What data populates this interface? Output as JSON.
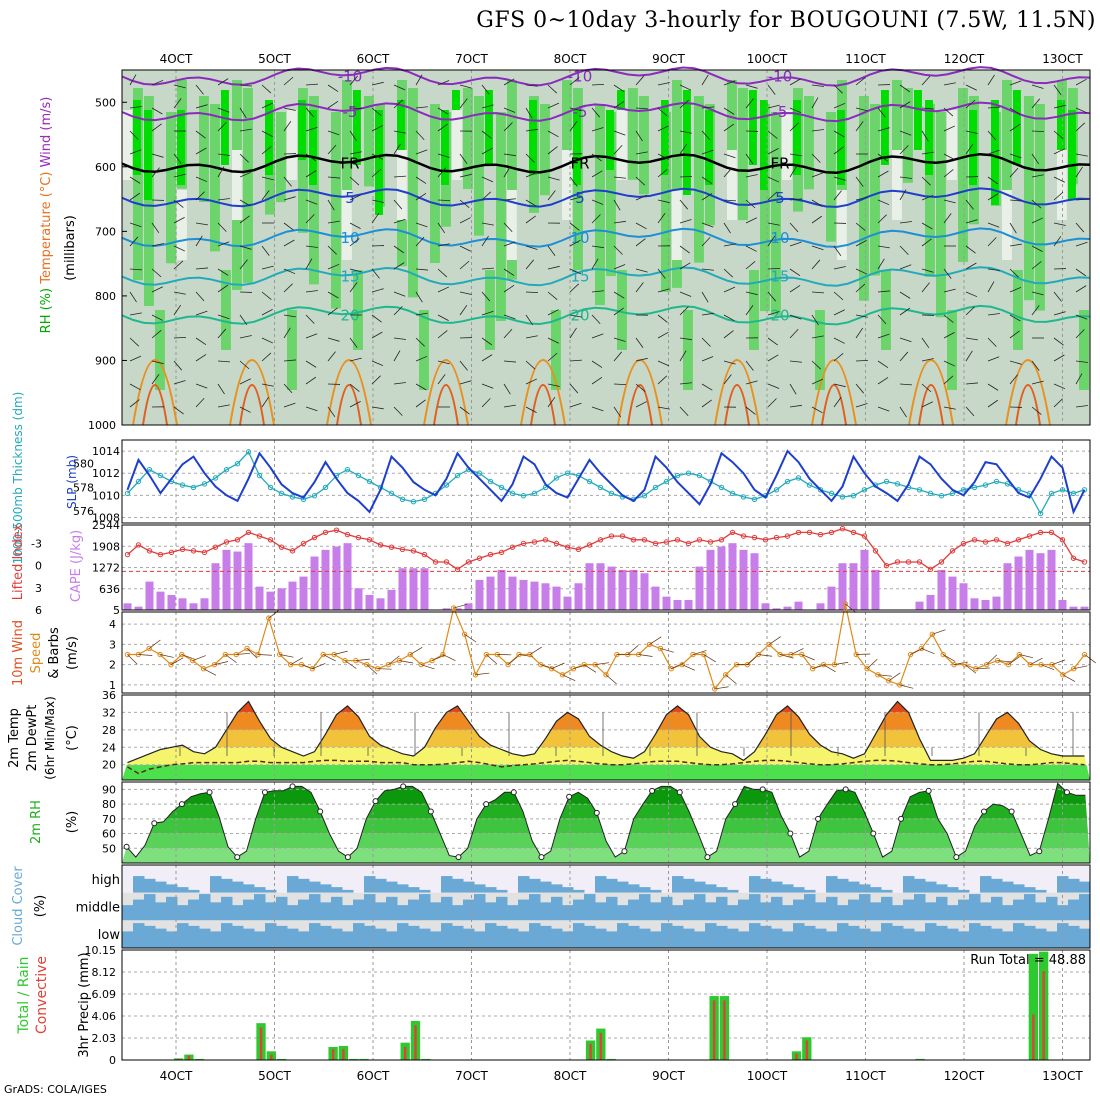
{
  "title": "GFS 0~10day 3-hourly for BOUGOUNI (7.5W, 11.5N)",
  "footer": "GrADS: COLA/IGES",
  "dates": [
    "4OCT",
    "5OCT",
    "6OCT",
    "7OCT",
    "8OCT",
    "9OCT",
    "10OCT",
    "11OCT",
    "12OCT",
    "13OCT"
  ],
  "colors": {
    "rh_dark": "#00dd00",
    "rh_mid": "#6bd46b",
    "rh_light": "#c8d8c8",
    "rh_pale": "#e8f0e8",
    "slp": "#1d3fcc",
    "thick": "#22aabb",
    "li": "#e03c3c",
    "cape": "#c77ee8",
    "wind": "#e08a1a",
    "rh2m": "#1dae1d",
    "cloud": "#6aa9d6",
    "cloud_pale": "#f2eef8",
    "rain_total": "#2ec92e",
    "rain_conv": "#e0413a"
  },
  "chart_data": [
    {
      "name": "upper-air",
      "type": "heatmap",
      "ylabel_parts": [
        "RH (%)",
        "Temperature (°C)",
        "Wind (m/s)"
      ],
      "axis_note": "(millibars)",
      "yticks": [
        500,
        600,
        700,
        800,
        900,
        1000
      ],
      "temperature_contours": [
        {
          "label": "-10",
          "level_mb": 460
        },
        {
          "label": "-5",
          "level_mb": 515
        },
        {
          "label": "FR",
          "level_mb": 595
        },
        {
          "label": "5",
          "level_mb": 648
        },
        {
          "label": "10",
          "level_mb": 710
        },
        {
          "label": "15",
          "level_mb": 770
        },
        {
          "label": "20",
          "level_mb": 830
        }
      ]
    },
    {
      "name": "slp-thickness",
      "type": "line",
      "ylabel_left": "1000-500mb Thickness (dm)",
      "ylabel_right": "SLP (mb)",
      "left_ticks": [
        576,
        578,
        580
      ],
      "right_ticks": [
        1008,
        1010,
        1012,
        1014
      ],
      "series": [
        {
          "name": "SLP (mb)",
          "values": [
            1010.5,
            1013.2,
            1011.8,
            1010.2,
            1011.5,
            1012.8,
            1013.5,
            1012.0,
            1010.8,
            1010.0,
            1009.5,
            1011.5,
            1013.8,
            1012.5,
            1011.0,
            1010.2,
            1009.8,
            1011.2,
            1013.0,
            1011.5,
            1010.2,
            1009.5,
            1008.5,
            1010.5,
            1013.5,
            1012.5,
            1011.2,
            1010.5,
            1010.0,
            1011.5,
            1013.8,
            1012.5,
            1011.5,
            1010.5,
            1009.5,
            1011.0,
            1013.5,
            1012.8,
            1011.0,
            1010.2,
            1009.8,
            1011.5,
            1013.2,
            1012.0,
            1011.0,
            1010.0,
            1009.5,
            1010.5,
            1013.5,
            1012.5,
            1011.2,
            1010.2,
            1009.2,
            1011.0,
            1013.8,
            1013.0,
            1012.0,
            1010.5,
            1009.8,
            1011.8,
            1014.0,
            1013.0,
            1011.5,
            1010.5,
            1009.5,
            1010.8,
            1013.5,
            1012.0,
            1010.8,
            1010.2,
            1009.5,
            1011.0,
            1013.5,
            1012.8,
            1011.5,
            1010.5,
            1010.0,
            1011.2,
            1013.0,
            1012.8,
            1011.5,
            1010.2,
            1009.8,
            1011.5,
            1013.5,
            1012.5,
            1008.5,
            1010.5
          ]
        },
        {
          "name": "Thickness (dm)",
          "values": [
            577.5,
            578.5,
            579.5,
            579.0,
            578.5,
            578.2,
            578.0,
            578.3,
            578.8,
            579.5,
            580.0,
            581.0,
            579.0,
            578.0,
            577.5,
            577.2,
            577.0,
            577.3,
            578.0,
            579.0,
            579.5,
            579.0,
            578.5,
            578.0,
            577.5,
            577.0,
            576.8,
            577.0,
            577.5,
            578.2,
            579.0,
            579.5,
            579.2,
            578.5,
            578.0,
            577.5,
            577.3,
            577.5,
            578.0,
            578.8,
            579.2,
            579.0,
            578.5,
            578.0,
            577.5,
            577.2,
            577.0,
            577.3,
            578.0,
            578.5,
            579.0,
            579.2,
            579.0,
            578.5,
            578.0,
            577.5,
            577.2,
            577.0,
            577.3,
            577.8,
            578.5,
            578.8,
            578.2,
            577.8,
            577.5,
            577.2,
            577.3,
            577.8,
            578.2,
            578.5,
            578.3,
            578.0,
            577.8,
            577.5,
            577.3,
            577.5,
            577.8,
            578.0,
            578.2,
            578.5,
            578.3,
            577.8,
            577.5,
            575.8,
            577.5,
            577.8,
            577.5,
            577.8
          ]
        }
      ]
    },
    {
      "name": "li-cape",
      "type": "bar",
      "ylabel_left": "Lifted Index",
      "ylabel_right": "CAPE (J/kg)",
      "left_ticks": [
        -3,
        0,
        3,
        6
      ],
      "right_ticks": [
        636,
        1272,
        1908,
        2544
      ],
      "series": [
        {
          "name": "Lifted Index",
          "values": [
            -1.5,
            -2.8,
            -2.0,
            -1.5,
            -1.8,
            -2.2,
            -2.0,
            -1.8,
            -2.5,
            -3.2,
            -3.5,
            -4.5,
            -4.0,
            -3.5,
            -2.5,
            -2.0,
            -3.0,
            -3.8,
            -4.5,
            -4.8,
            -4.2,
            -3.8,
            -3.5,
            -2.8,
            -2.5,
            -2.2,
            -2.0,
            -1.5,
            -0.5,
            -0.5,
            0.5,
            -0.5,
            -1.0,
            -1.5,
            -1.8,
            -2.5,
            -3.0,
            -3.2,
            -3.5,
            -3.0,
            -2.5,
            -2.2,
            -2.8,
            -3.5,
            -4.0,
            -4.0,
            -3.5,
            -3.5,
            -3.0,
            -3.2,
            -3.5,
            -3.0,
            -3.5,
            -3.2,
            -3.5,
            -4.5,
            -4.0,
            -3.8,
            -3.5,
            -3.8,
            -4.0,
            -4.5,
            -4.5,
            -4.2,
            -4.5,
            -5.0,
            -4.5,
            -4.0,
            -2.0,
            0.0,
            -0.5,
            -0.5,
            -0.5,
            0.5,
            -0.5,
            -2.0,
            -3.0,
            -3.5,
            -3.2,
            -3.5,
            -3.0,
            -3.5,
            -4.0,
            -4.5,
            -4.5,
            -3.5,
            -1.0,
            -0.5
          ]
        },
        {
          "name": "CAPE (J/kg)",
          "values": [
            200,
            100,
            850,
            550,
            450,
            350,
            200,
            350,
            1400,
            1800,
            1750,
            2000,
            700,
            550,
            650,
            850,
            1000,
            1600,
            1800,
            1900,
            2000,
            650,
            450,
            350,
            600,
            1250,
            1250,
            1250,
            0,
            50,
            50,
            200,
            900,
            1000,
            1200,
            1000,
            900,
            850,
            800,
            700,
            400,
            800,
            1400,
            1400,
            1300,
            1200,
            1200,
            1100,
            700,
            400,
            300,
            300,
            1300,
            1800,
            1900,
            2000,
            1800,
            1700,
            200,
            50,
            100,
            250,
            0,
            200,
            700,
            1400,
            1400,
            1800,
            1200,
            0,
            0,
            0,
            250,
            450,
            1200,
            1000,
            800,
            350,
            300,
            400,
            1400,
            1600,
            1800,
            1700,
            1800,
            300,
            100,
            100
          ]
        }
      ]
    },
    {
      "name": "wind10m",
      "type": "line",
      "ylabel": "10m Wind Speed & Barbs (m/s)",
      "ylim": [
        1,
        4
      ],
      "yticks": [
        1,
        2,
        3,
        4
      ],
      "values": [
        2.5,
        2.5,
        2.8,
        2.5,
        2.0,
        2.5,
        2.2,
        1.8,
        2.0,
        2.5,
        2.5,
        2.8,
        2.5,
        4.3,
        2.5,
        2.0,
        2.0,
        1.8,
        2.5,
        2.5,
        2.2,
        2.2,
        2.0,
        1.8,
        2.0,
        2.2,
        2.5,
        2.0,
        2.2,
        2.5,
        4.8,
        3.5,
        1.5,
        2.5,
        2.5,
        2.0,
        2.5,
        2.5,
        2.0,
        1.8,
        1.5,
        1.8,
        2.0,
        2.0,
        1.5,
        2.5,
        2.5,
        2.5,
        3.0,
        2.8,
        1.8,
        2.0,
        2.5,
        2.5,
        0.8,
        1.5,
        2.0,
        2.0,
        2.5,
        3.0,
        2.5,
        2.5,
        2.5,
        1.8,
        2.0,
        2.0,
        5.0,
        2.5,
        1.8,
        1.5,
        1.2,
        1.0,
        2.5,
        2.8,
        3.5,
        2.5,
        2.0,
        2.0,
        1.8,
        2.0,
        2.2,
        2.0,
        2.5,
        2.0,
        2.0,
        2.0,
        1.5,
        1.8,
        2.5
      ]
    },
    {
      "name": "temperature2m",
      "type": "area",
      "ylabel": "2m Temp 2m DewPt (6hr Min/Max) (°C)",
      "ylim": [
        16,
        36
      ],
      "yticks": [
        20,
        24,
        28,
        32,
        36
      ],
      "series": [
        {
          "name": "2m Temp",
          "values": [
            20.5,
            21.5,
            22.5,
            23.5,
            24.0,
            24.5,
            23.0,
            22.5,
            24.0,
            28.0,
            32.0,
            34.5,
            30.0,
            26.0,
            24.0,
            23.0,
            22.0,
            23.0,
            27.0,
            31.5,
            33.5,
            31.0,
            26.5,
            24.5,
            23.5,
            22.5,
            22.0,
            24.0,
            28.5,
            32.0,
            33.5,
            30.0,
            26.5,
            24.5,
            23.5,
            22.5,
            22.0,
            22.5,
            26.0,
            30.0,
            32.0,
            30.5,
            26.5,
            24.5,
            23.0,
            22.0,
            21.5,
            23.0,
            27.0,
            31.5,
            33.5,
            31.5,
            26.5,
            24.0,
            23.0,
            22.5,
            21.0,
            23.0,
            27.0,
            31.5,
            33.5,
            31.0,
            27.0,
            24.5,
            23.0,
            22.5,
            21.5,
            22.5,
            27.0,
            31.5,
            34.5,
            32.0,
            26.0,
            21.0,
            21.0,
            21.0,
            21.5,
            22.5,
            26.5,
            30.5,
            32.0,
            29.5,
            25.5,
            23.5,
            22.5,
            22.0,
            22.0,
            22.0
          ]
        },
        {
          "name": "2m DewPt",
          "values": [
            19.5,
            18.0,
            19.0,
            19.5,
            20.0,
            20.2,
            20.5,
            20.5,
            20.5,
            20.5,
            20.5,
            20.8,
            20.8,
            20.5,
            20.5,
            20.5,
            20.5,
            20.8,
            21.0,
            21.0,
            20.8,
            20.8,
            20.8,
            20.5,
            20.5,
            20.5,
            20.0,
            20.0,
            20.0,
            20.2,
            20.5,
            20.8,
            20.5,
            20.0,
            19.5,
            19.8,
            20.0,
            20.2,
            20.5,
            20.8,
            21.0,
            20.8,
            20.5,
            20.2,
            20.0,
            20.0,
            20.2,
            20.5,
            20.8,
            20.8,
            20.8,
            20.5,
            20.2,
            20.0,
            20.0,
            20.2,
            20.5,
            20.8,
            21.0,
            21.0,
            20.8,
            20.5,
            20.2,
            20.0,
            20.0,
            20.2,
            20.5,
            20.8,
            21.0,
            21.0,
            20.8,
            20.5,
            20.2,
            20.0,
            20.0,
            20.2,
            20.5,
            20.8,
            20.8,
            20.5,
            20.2,
            20.0,
            20.0,
            20.2,
            20.5,
            20.5,
            20.2,
            20.0
          ]
        }
      ]
    },
    {
      "name": "rh2m",
      "type": "area",
      "ylabel": "2m RH (%)",
      "ylim": [
        40,
        95
      ],
      "yticks": [
        50,
        60,
        70,
        80,
        90
      ],
      "values": [
        51,
        44,
        52,
        67,
        68,
        75,
        80,
        85,
        87,
        88,
        72,
        51,
        44,
        48,
        70,
        88,
        89,
        89,
        92,
        92,
        88,
        75,
        60,
        48,
        44,
        50,
        70,
        82,
        89,
        90,
        92,
        92,
        88,
        75,
        60,
        45,
        44,
        50,
        70,
        80,
        83,
        88,
        88,
        75,
        55,
        44,
        48,
        70,
        85,
        88,
        84,
        74,
        55,
        44,
        48,
        70,
        80,
        89,
        92,
        92,
        88,
        75,
        60,
        44,
        48,
        70,
        80,
        92,
        90,
        90,
        88,
        72,
        60,
        44,
        48,
        70,
        80,
        89,
        90,
        88,
        75,
        60,
        44,
        48,
        70,
        85,
        88,
        89,
        70,
        60,
        44,
        48,
        65,
        75,
        80,
        79,
        75,
        60,
        45,
        48,
        70,
        94,
        88,
        86,
        86
      ]
    },
    {
      "name": "cloud-cover",
      "type": "table",
      "ylabel": "Cloud Cover (%)",
      "rows": [
        "high",
        "middle",
        "low"
      ]
    },
    {
      "name": "precip",
      "type": "bar",
      "ylabel": "Total / Rain Convective 3hr Precip (mm)",
      "annotation": "Run Total = 48.88",
      "ylim": [
        0,
        10.15
      ],
      "yticks": [
        0,
        2.03,
        4.06,
        6.09,
        8.12,
        10.15
      ],
      "series": [
        {
          "name": "Total",
          "values": [
            0,
            0,
            0,
            0,
            0,
            0.15,
            0.5,
            0.1,
            0,
            0,
            0,
            0,
            0,
            3.4,
            0.8,
            0.1,
            0,
            0,
            0,
            0,
            1.2,
            1.3,
            0.1,
            0.1,
            0,
            0,
            0,
            1.6,
            3.6,
            0.1,
            0,
            0,
            0,
            0,
            0,
            0,
            0,
            0,
            0,
            0,
            0,
            0,
            0,
            0,
            0,
            1.8,
            2.9,
            0.1,
            0,
            0,
            0,
            0,
            0,
            0,
            0,
            0,
            0,
            5.9,
            5.9,
            0,
            0,
            0,
            0,
            0,
            0,
            0.8,
            2.1,
            0,
            0,
            0,
            0,
            0,
            0,
            0,
            0,
            0,
            0,
            0.1,
            0,
            0,
            0,
            0,
            0,
            0,
            0,
            0,
            0,
            0,
            9.8,
            10.0,
            0,
            0,
            0,
            0
          ]
        },
        {
          "name": "Convective",
          "values": [
            0,
            0,
            0,
            0,
            0,
            0.1,
            0.4,
            0.05,
            0,
            0,
            0,
            0,
            0,
            3.0,
            0.5,
            0,
            0,
            0,
            0,
            0,
            1.0,
            1.0,
            0,
            0,
            0,
            0,
            0,
            1.2,
            3.2,
            0,
            0,
            0,
            0,
            0,
            0,
            0,
            0,
            0,
            0,
            0,
            0,
            0,
            0,
            0,
            0,
            1.5,
            2.5,
            0,
            0,
            0,
            0,
            0,
            0,
            0,
            0,
            0,
            0,
            5.5,
            5.5,
            0,
            0,
            0,
            0,
            0,
            0,
            0.6,
            1.8,
            0,
            0,
            0,
            0,
            0,
            0,
            0,
            0,
            0,
            0,
            0.05,
            0,
            0,
            0,
            0,
            0,
            0,
            0,
            0,
            0,
            0,
            4.2,
            8.2,
            0,
            0,
            0,
            0
          ]
        }
      ]
    }
  ]
}
